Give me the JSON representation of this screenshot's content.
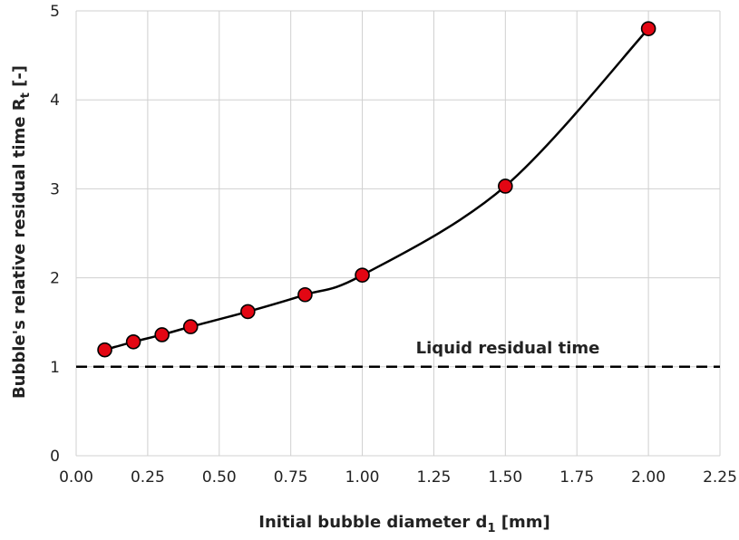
{
  "chart_data": {
    "type": "line",
    "title": "",
    "xlabel": {
      "main": "Initial bubble diameter d",
      "sub": "1",
      "unit": " [mm]"
    },
    "ylabel": {
      "main": "Bubble's relative residual time R",
      "sub": "t",
      "unit": " [-]"
    },
    "xlim": [
      0,
      2.25
    ],
    "ylim": [
      0,
      5
    ],
    "xticks": [
      "0.00",
      "0.25",
      "0.50",
      "0.75",
      "1.00",
      "1.25",
      "1.50",
      "1.75",
      "2.00",
      "2.25"
    ],
    "yticks": [
      "0",
      "1",
      "2",
      "3",
      "4",
      "5"
    ],
    "grid": true,
    "legend": "none",
    "series": [
      {
        "x": [
          0.1,
          0.2,
          0.3,
          0.4,
          0.6,
          0.8,
          1.0,
          1.5,
          2.0
        ],
        "y": [
          1.19,
          1.28,
          1.36,
          1.45,
          1.62,
          1.81,
          2.03,
          3.03,
          4.8
        ],
        "color": "#000000",
        "marker_color": "#e30613"
      }
    ],
    "reference_line": {
      "y": 1.0,
      "label": "Liquid residual time",
      "style": "dashed",
      "color": "#000000"
    }
  }
}
